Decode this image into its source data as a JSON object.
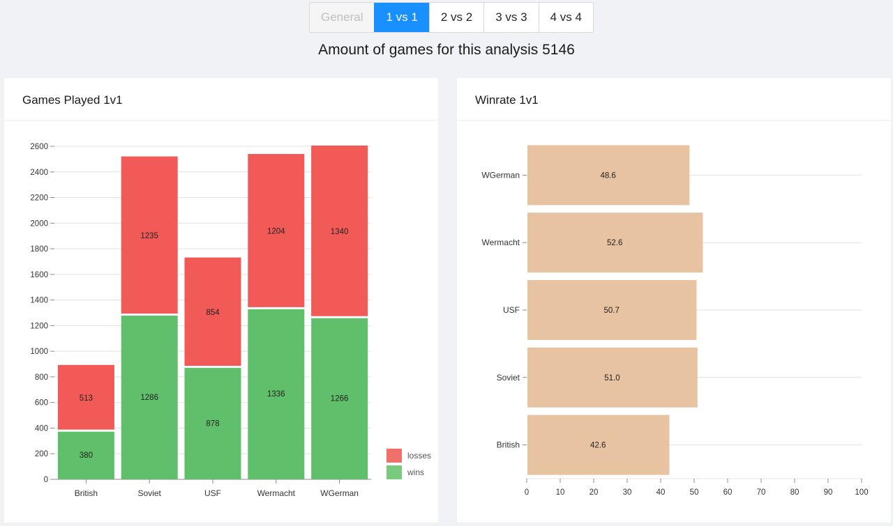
{
  "tabs": [
    {
      "label": "General",
      "state": "disabled"
    },
    {
      "label": "1 vs 1",
      "state": "active"
    },
    {
      "label": "2 vs 2",
      "state": "normal"
    },
    {
      "label": "3 vs 3",
      "state": "normal"
    },
    {
      "label": "4 vs 4",
      "state": "normal"
    }
  ],
  "headline": "Amount of games for this analysis 5146",
  "games_card": {
    "title": "Games Played 1v1"
  },
  "winrate_card": {
    "title": "Winrate 1v1"
  },
  "colors": {
    "losses": "#f15a57",
    "wins": "#60bf6a",
    "winrate": "#e8c3a1"
  },
  "chart_data": [
    {
      "type": "bar",
      "stacked": true,
      "categories": [
        "British",
        "Soviet",
        "USF",
        "Wermacht",
        "WGerman"
      ],
      "series": [
        {
          "name": "wins",
          "values": [
            380,
            1286,
            878,
            1336,
            1266
          ]
        },
        {
          "name": "losses",
          "values": [
            513,
            1235,
            854,
            1204,
            1340
          ]
        }
      ],
      "legend": [
        "losses",
        "wins"
      ],
      "legend_position": "bottom-right",
      "ylim": [
        0,
        2600
      ],
      "yticks": [
        0,
        200,
        400,
        600,
        800,
        1000,
        1200,
        1400,
        1600,
        1800,
        2000,
        2200,
        2400,
        2600
      ],
      "grid": true
    },
    {
      "type": "bar",
      "orientation": "horizontal",
      "categories": [
        "WGerman",
        "Wermacht",
        "USF",
        "Soviet",
        "British"
      ],
      "values": [
        48.6,
        52.6,
        50.7,
        51.0,
        42.6
      ],
      "value_labels": [
        "48.6",
        "52.6",
        "50.7",
        "51.0",
        "42.6"
      ],
      "xlim": [
        0,
        100
      ],
      "xticks": [
        0,
        10,
        20,
        30,
        40,
        50,
        60,
        70,
        80,
        90,
        100
      ],
      "grid": true
    }
  ]
}
